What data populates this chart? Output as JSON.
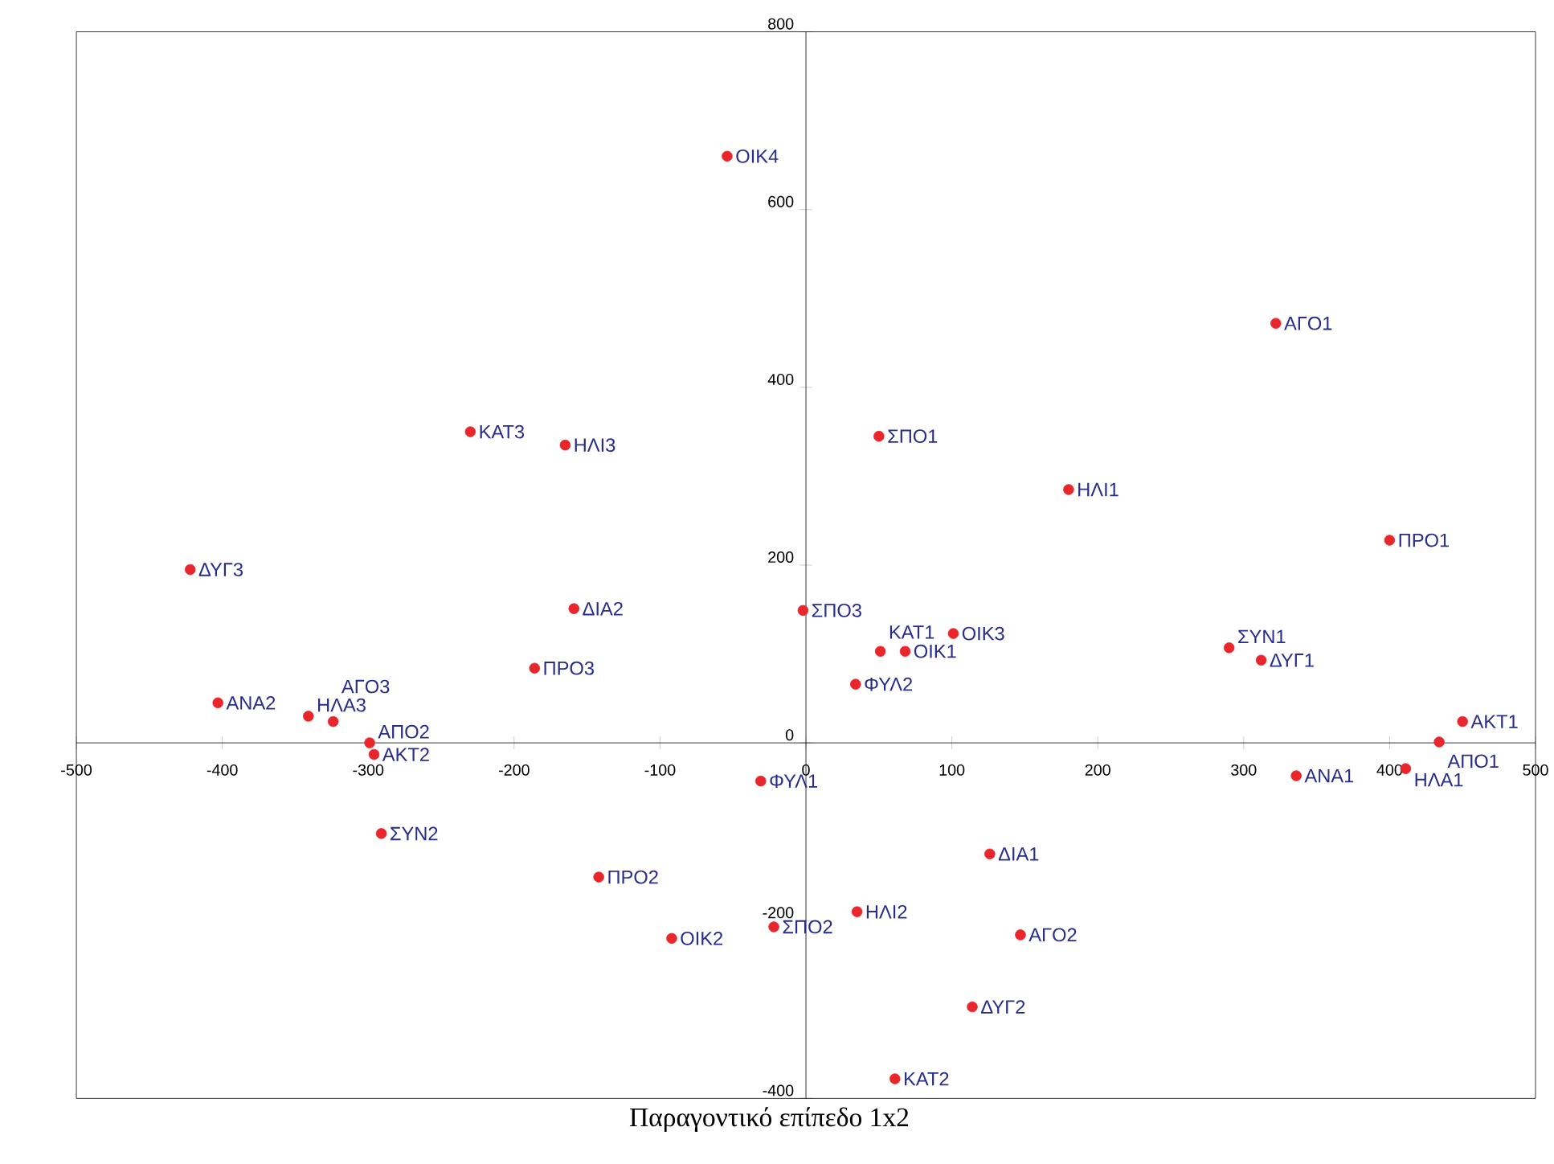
{
  "chart_data": {
    "type": "scatter",
    "title": "Παραγοντικό επίπεδο 1x2",
    "xlim": [
      -500,
      500
    ],
    "ylim": [
      -400,
      800
    ],
    "xticks": [
      -500,
      -400,
      -300,
      -200,
      -100,
      0,
      100,
      200,
      300,
      400,
      500
    ],
    "yticks": [
      -400,
      -200,
      0,
      200,
      400,
      600,
      800
    ],
    "grid": false,
    "marker": "circle",
    "series": [
      {
        "color": "#e8262b",
        "x": [
          -54,
          322,
          -230,
          -165,
          50,
          180,
          400,
          -422,
          -159,
          -2,
          -186,
          101,
          51,
          68,
          34,
          290,
          312,
          -403,
          -341,
          -324,
          -299,
          -296,
          450,
          434,
          336,
          411,
          -31,
          -291,
          126,
          -142,
          35,
          -22,
          -92,
          147,
          114,
          61
        ],
        "values": [
          660,
          472,
          350,
          335,
          345,
          285,
          228,
          195,
          151,
          149,
          84,
          123,
          103,
          103,
          66,
          107,
          93,
          45,
          30,
          24,
          0,
          -13,
          24,
          1,
          -37,
          -29,
          -43,
          -102,
          -125,
          -151,
          -190,
          -207,
          -220,
          -216,
          -297,
          -378
        ]
      }
    ],
    "annotations": [
      {
        "text": "ΟΙΚ4",
        "x": -54,
        "y": 660
      },
      {
        "text": "ΑΓΟ1",
        "x": 322,
        "y": 472
      },
      {
        "text": "ΚΑΤ3",
        "x": -230,
        "y": 350
      },
      {
        "text": "ΗΛΙ3",
        "x": -165,
        "y": 335
      },
      {
        "text": "ΣΠΟ1",
        "x": 50,
        "y": 345
      },
      {
        "text": "ΗΛΙ1",
        "x": 180,
        "y": 285
      },
      {
        "text": "ΠΡΟ1",
        "x": 400,
        "y": 228
      },
      {
        "text": "ΔΥΓ3",
        "x": -422,
        "y": 195
      },
      {
        "text": "ΔΙΑ2",
        "x": -159,
        "y": 151
      },
      {
        "text": "ΣΠΟ3",
        "x": -2,
        "y": 149
      },
      {
        "text": "ΠΡΟ3",
        "x": -186,
        "y": 84
      },
      {
        "text": "ΟΙΚ3",
        "x": 101,
        "y": 123
      },
      {
        "text": "ΚΑΤ1",
        "x": 51,
        "y": 103
      },
      {
        "text": "ΟΙΚ1",
        "x": 68,
        "y": 103
      },
      {
        "text": "ΦΥΛ2",
        "x": 34,
        "y": 66
      },
      {
        "text": "ΣΥΝ1",
        "x": 290,
        "y": 107
      },
      {
        "text": "ΔΥΓ1",
        "x": 312,
        "y": 93
      },
      {
        "text": "ΑΝΑ2",
        "x": -403,
        "y": 45
      },
      {
        "text": "ΗΛΑ3",
        "x": -341,
        "y": 30
      },
      {
        "text": "ΑΓΟ3",
        "x": -324,
        "y": 24
      },
      {
        "text": "ΑΠΟ2",
        "x": -299,
        "y": 0
      },
      {
        "text": "ΑΚΤ2",
        "x": -296,
        "y": -13
      },
      {
        "text": "ΑΚΤ1",
        "x": 450,
        "y": 24
      },
      {
        "text": "ΑΠΟ1",
        "x": 434,
        "y": 1
      },
      {
        "text": "ΑΝΑ1",
        "x": 336,
        "y": -37
      },
      {
        "text": "ΗΛΑ1",
        "x": 411,
        "y": -29
      },
      {
        "text": "ΦΥΛ1",
        "x": -31,
        "y": -43
      },
      {
        "text": "ΣΥΝ2",
        "x": -291,
        "y": -102
      },
      {
        "text": "ΔΙΑ1",
        "x": 126,
        "y": -125
      },
      {
        "text": "ΠΡΟ2",
        "x": -142,
        "y": -151
      },
      {
        "text": "ΗΛΙ2",
        "x": 35,
        "y": -190
      },
      {
        "text": "ΣΠΟ2",
        "x": -22,
        "y": -207
      },
      {
        "text": "ΟΙΚ2",
        "x": -92,
        "y": -220
      },
      {
        "text": "ΑΓΟ2",
        "x": 147,
        "y": -216
      },
      {
        "text": "ΔΥΓ2",
        "x": 114,
        "y": -297
      },
      {
        "text": "ΚΑΤ2",
        "x": 61,
        "y": -378
      }
    ]
  }
}
